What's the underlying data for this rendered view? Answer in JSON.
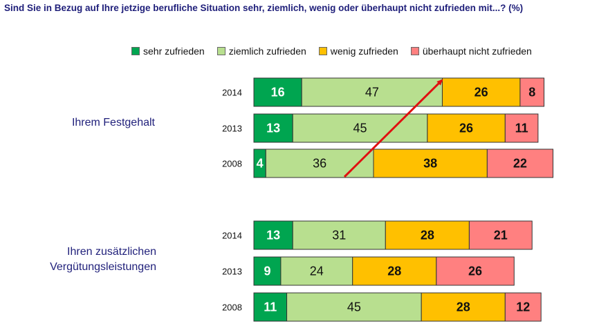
{
  "chart_data": {
    "type": "bar",
    "orientation": "horizontal",
    "stacked": true,
    "title": "Sind Sie in Bezug auf Ihre jetzige berufliche Situation sehr, ziemlich, wenig oder überhaupt nicht zufrieden mit...? (%)",
    "legend_position": "top",
    "legend": [
      "sehr zufrieden",
      "ziemlich zufrieden",
      "wenig zufrieden",
      "überhaupt nicht zufrieden"
    ],
    "colors": [
      "#00a550",
      "#b8df8f",
      "#ffc000",
      "#ff8080"
    ],
    "label_colors": [
      "#ffffff",
      "#111111",
      "#111111",
      "#111111"
    ],
    "label_weights": [
      "bold",
      "normal",
      "bold",
      "bold"
    ],
    "groups": [
      {
        "label_line1": "Ihrem Festgehalt",
        "label_line2": "",
        "rows": [
          {
            "year": "2014",
            "values": [
              16,
              47,
              26,
              8
            ]
          },
          {
            "year": "2013",
            "values": [
              13,
              45,
              26,
              11
            ]
          },
          {
            "year": "2008",
            "values": [
              4,
              36,
              38,
              22
            ]
          }
        ]
      },
      {
        "label_line1": "Ihren zusätzlichen",
        "label_line2": "Vergütungsleistungen",
        "rows": [
          {
            "year": "2014",
            "values": [
              13,
              31,
              28,
              21
            ]
          },
          {
            "year": "2013",
            "values": [
              9,
              24,
              28,
              26
            ]
          },
          {
            "year": "2008",
            "values": [
              11,
              45,
              28,
              12
            ]
          }
        ]
      }
    ],
    "annotation": "red arrow indicating increase in satisfaction from 2008 to 2014 (Festgehalt)",
    "arrow_color": "#e01010"
  }
}
